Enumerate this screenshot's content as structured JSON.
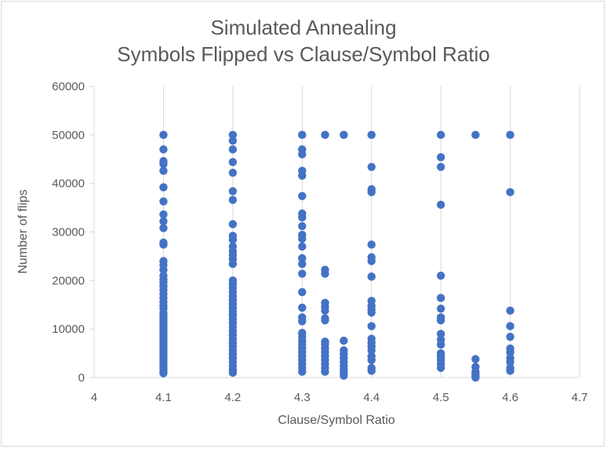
{
  "chart_data": {
    "type": "scatter",
    "title": [
      "Simulated Annealing",
      "Symbols Flipped vs Clause/Symbol Ratio"
    ],
    "xlabel": "Clause/Symbol Ratio",
    "ylabel": "Number of flips",
    "xlim": [
      4,
      4.7
    ],
    "ylim": [
      0,
      60000
    ],
    "xticks": [
      "4",
      "4.1",
      "4.2",
      "4.3",
      "4.4",
      "4.5",
      "4.6",
      "4.7"
    ],
    "yticks": [
      "0",
      "10000",
      "20000",
      "30000",
      "40000",
      "50000",
      "60000"
    ],
    "grid": "vertical",
    "legend": "none",
    "marker_color": "#4472C4",
    "series": [
      {
        "points": [
          [
            4.1,
            50000
          ],
          [
            4.1,
            47000
          ],
          [
            4.1,
            44600
          ],
          [
            4.1,
            44000
          ],
          [
            4.1,
            42600
          ],
          [
            4.1,
            39200
          ],
          [
            4.1,
            36300
          ],
          [
            4.1,
            33600
          ],
          [
            4.1,
            32200
          ],
          [
            4.1,
            30800
          ],
          [
            4.1,
            27800
          ],
          [
            4.1,
            27400
          ],
          [
            4.1,
            24000
          ],
          [
            4.1,
            23200
          ],
          [
            4.1,
            22200
          ],
          [
            4.1,
            21000
          ],
          [
            4.1,
            20200
          ],
          [
            4.1,
            19600
          ],
          [
            4.1,
            18800
          ],
          [
            4.1,
            18000
          ],
          [
            4.1,
            17200
          ],
          [
            4.1,
            16400
          ],
          [
            4.1,
            15600
          ],
          [
            4.1,
            14800
          ],
          [
            4.1,
            14200
          ],
          [
            4.1,
            13400
          ],
          [
            4.1,
            12800
          ],
          [
            4.1,
            12200
          ],
          [
            4.1,
            11600
          ],
          [
            4.1,
            11000
          ],
          [
            4.1,
            10400
          ],
          [
            4.1,
            9800
          ],
          [
            4.1,
            9200
          ],
          [
            4.1,
            8600
          ],
          [
            4.1,
            8000
          ],
          [
            4.1,
            7400
          ],
          [
            4.1,
            6800
          ],
          [
            4.1,
            6200
          ],
          [
            4.1,
            5600
          ],
          [
            4.1,
            5000
          ],
          [
            4.1,
            4400
          ],
          [
            4.1,
            3800
          ],
          [
            4.1,
            3200
          ],
          [
            4.1,
            2600
          ],
          [
            4.1,
            2000
          ],
          [
            4.1,
            1400
          ],
          [
            4.1,
            900
          ],
          [
            4.2,
            50000
          ],
          [
            4.2,
            48800
          ],
          [
            4.2,
            47000
          ],
          [
            4.2,
            44400
          ],
          [
            4.2,
            42200
          ],
          [
            4.2,
            38400
          ],
          [
            4.2,
            36600
          ],
          [
            4.2,
            31600
          ],
          [
            4.2,
            29200
          ],
          [
            4.2,
            28400
          ],
          [
            4.2,
            27000
          ],
          [
            4.2,
            26000
          ],
          [
            4.2,
            25200
          ],
          [
            4.2,
            24400
          ],
          [
            4.2,
            23400
          ],
          [
            4.2,
            20000
          ],
          [
            4.2,
            19200
          ],
          [
            4.2,
            18400
          ],
          [
            4.2,
            17600
          ],
          [
            4.2,
            16800
          ],
          [
            4.2,
            16000
          ],
          [
            4.2,
            15200
          ],
          [
            4.2,
            14400
          ],
          [
            4.2,
            13600
          ],
          [
            4.2,
            12800
          ],
          [
            4.2,
            12000
          ],
          [
            4.2,
            11200
          ],
          [
            4.2,
            10400
          ],
          [
            4.2,
            9600
          ],
          [
            4.2,
            8800
          ],
          [
            4.2,
            8000
          ],
          [
            4.2,
            7200
          ],
          [
            4.2,
            6400
          ],
          [
            4.2,
            5600
          ],
          [
            4.2,
            4800
          ],
          [
            4.2,
            4000
          ],
          [
            4.2,
            3200
          ],
          [
            4.2,
            2400
          ],
          [
            4.2,
            1600
          ],
          [
            4.2,
            1000
          ],
          [
            4.3,
            50000
          ],
          [
            4.3,
            47000
          ],
          [
            4.3,
            46000
          ],
          [
            4.3,
            42600
          ],
          [
            4.3,
            41600
          ],
          [
            4.3,
            37400
          ],
          [
            4.3,
            33800
          ],
          [
            4.3,
            33000
          ],
          [
            4.3,
            31200
          ],
          [
            4.3,
            29400
          ],
          [
            4.3,
            28600
          ],
          [
            4.3,
            27000
          ],
          [
            4.3,
            24600
          ],
          [
            4.3,
            23400
          ],
          [
            4.3,
            21400
          ],
          [
            4.3,
            17600
          ],
          [
            4.3,
            14400
          ],
          [
            4.3,
            12400
          ],
          [
            4.3,
            11600
          ],
          [
            4.3,
            9200
          ],
          [
            4.3,
            8400
          ],
          [
            4.3,
            7600
          ],
          [
            4.3,
            6800
          ],
          [
            4.3,
            6000
          ],
          [
            4.3,
            5200
          ],
          [
            4.3,
            4400
          ],
          [
            4.3,
            3600
          ],
          [
            4.3,
            2800
          ],
          [
            4.3,
            2000
          ],
          [
            4.3,
            1200
          ],
          [
            4.333,
            50000
          ],
          [
            4.333,
            22200
          ],
          [
            4.333,
            21400
          ],
          [
            4.333,
            15400
          ],
          [
            4.333,
            14600
          ],
          [
            4.333,
            13800
          ],
          [
            4.333,
            12200
          ],
          [
            4.333,
            11800
          ],
          [
            4.333,
            7400
          ],
          [
            4.333,
            6800
          ],
          [
            4.333,
            6000
          ],
          [
            4.333,
            5200
          ],
          [
            4.333,
            4400
          ],
          [
            4.333,
            3600
          ],
          [
            4.333,
            2800
          ],
          [
            4.333,
            2000
          ],
          [
            4.333,
            1200
          ],
          [
            4.36,
            50000
          ],
          [
            4.36,
            7600
          ],
          [
            4.36,
            5600
          ],
          [
            4.36,
            4800
          ],
          [
            4.36,
            4000
          ],
          [
            4.36,
            3200
          ],
          [
            4.36,
            2400
          ],
          [
            4.36,
            1600
          ],
          [
            4.36,
            1000
          ],
          [
            4.36,
            400
          ],
          [
            4.4,
            50000
          ],
          [
            4.4,
            43400
          ],
          [
            4.4,
            38800
          ],
          [
            4.4,
            38200
          ],
          [
            4.4,
            27400
          ],
          [
            4.4,
            24800
          ],
          [
            4.4,
            24000
          ],
          [
            4.4,
            20800
          ],
          [
            4.4,
            15800
          ],
          [
            4.4,
            14800
          ],
          [
            4.4,
            14000
          ],
          [
            4.4,
            13400
          ],
          [
            4.4,
            10600
          ],
          [
            4.4,
            8000
          ],
          [
            4.4,
            7200
          ],
          [
            4.4,
            6400
          ],
          [
            4.4,
            5600
          ],
          [
            4.4,
            4400
          ],
          [
            4.4,
            3600
          ],
          [
            4.4,
            2000
          ],
          [
            4.4,
            1400
          ],
          [
            4.5,
            50000
          ],
          [
            4.5,
            45400
          ],
          [
            4.5,
            43400
          ],
          [
            4.5,
            35600
          ],
          [
            4.5,
            21000
          ],
          [
            4.5,
            16400
          ],
          [
            4.5,
            14200
          ],
          [
            4.5,
            12400
          ],
          [
            4.5,
            11800
          ],
          [
            4.5,
            9000
          ],
          [
            4.5,
            7800
          ],
          [
            4.5,
            6800
          ],
          [
            4.5,
            5000
          ],
          [
            4.5,
            4400
          ],
          [
            4.5,
            3600
          ],
          [
            4.5,
            2800
          ],
          [
            4.5,
            2000
          ],
          [
            4.55,
            50000
          ],
          [
            4.55,
            3800
          ],
          [
            4.55,
            2200
          ],
          [
            4.55,
            1200
          ],
          [
            4.55,
            600
          ],
          [
            4.55,
            200
          ],
          [
            4.55,
            0
          ],
          [
            4.6,
            50000
          ],
          [
            4.6,
            38200
          ],
          [
            4.6,
            13800
          ],
          [
            4.6,
            10600
          ],
          [
            4.6,
            8400
          ],
          [
            4.6,
            6000
          ],
          [
            4.6,
            5200
          ],
          [
            4.6,
            4000
          ],
          [
            4.6,
            3200
          ],
          [
            4.6,
            2000
          ],
          [
            4.6,
            1400
          ]
        ]
      }
    ]
  }
}
